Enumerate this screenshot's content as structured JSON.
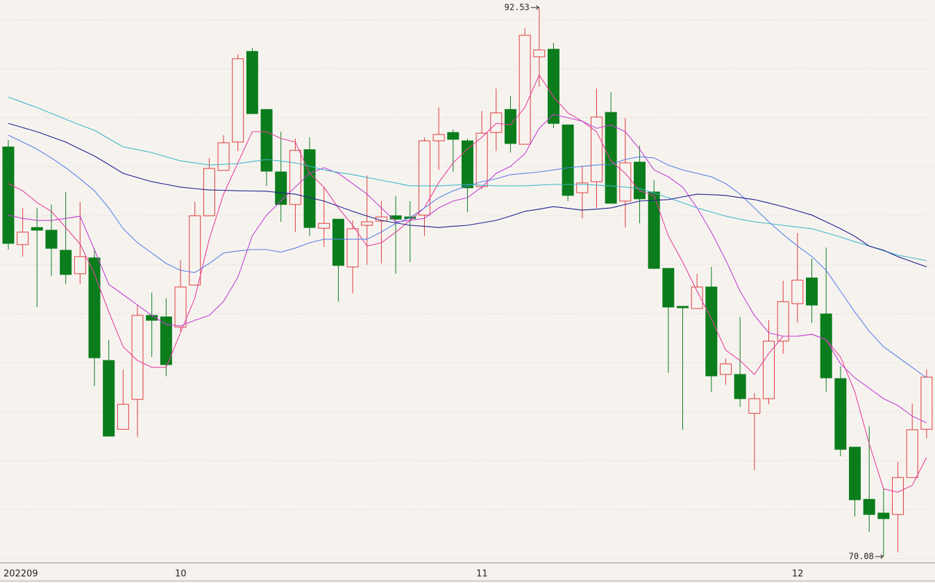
{
  "chart_data": {
    "type": "candlestick",
    "categories": [
      "202209",
      null,
      null,
      null,
      null,
      null,
      null,
      null,
      null,
      null,
      null,
      null,
      "10",
      null,
      null,
      null,
      null,
      null,
      null,
      null,
      null,
      null,
      null,
      null,
      null,
      null,
      null,
      null,
      null,
      null,
      null,
      null,
      null,
      "11",
      null,
      null,
      null,
      null,
      null,
      null,
      null,
      null,
      null,
      null,
      null,
      null,
      null,
      null,
      null,
      null,
      null,
      null,
      null,
      null,
      null,
      "12",
      null,
      null,
      null,
      null,
      null,
      null,
      null,
      null,
      null
    ],
    "open": [
      86.81,
      82.82,
      83.52,
      83.41,
      82.59,
      81.63,
      82.28,
      78.09,
      75.28,
      76.5,
      79.93,
      79.87,
      79.45,
      81.17,
      84.0,
      85.85,
      87.01,
      90.71,
      88.34,
      85.79,
      84.46,
      86.7,
      83.49,
      83.86,
      81.91,
      83.61,
      83.78,
      84.0,
      83.95,
      84.03,
      87.06,
      87.4,
      87.06,
      85.19,
      87.4,
      88.34,
      86.92,
      90.49,
      90.8,
      87.71,
      84.94,
      85.39,
      88.22,
      84.6,
      86.19,
      84.97,
      81.85,
      80.3,
      80.21,
      81.09,
      77.52,
      77.52,
      75.93,
      76.53,
      78.88,
      80.41,
      81.46,
      79.99,
      77.35,
      74.55,
      72.42,
      71.86,
      71.8,
      73.31,
      75.28
    ],
    "high": [
      87.09,
      84.32,
      84.32,
      84.46,
      84.97,
      84.57,
      82.67,
      78.94,
      77.72,
      80.35,
      80.86,
      80.63,
      82.19,
      84.57,
      86.36,
      87.29,
      90.6,
      90.86,
      88.34,
      87.43,
      87.15,
      87.2,
      85.17,
      83.86,
      83.81,
      85.65,
      84.6,
      84.8,
      84.6,
      87.2,
      88.42,
      87.52,
      87.15,
      88.28,
      89.19,
      88.9,
      91.65,
      92.53,
      91.06,
      87.71,
      86.02,
      89.19,
      89.04,
      87.99,
      86.86,
      85.45,
      81.85,
      80.3,
      81.63,
      81.91,
      78.17,
      79.87,
      76.76,
      79.73,
      81.34,
      83.3,
      82.25,
      82.7,
      77.86,
      74.55,
      75.4,
      72.85,
      73.95,
      76.33,
      77.72
    ],
    "low": [
      82.62,
      82.33,
      80.27,
      81.54,
      81.2,
      81.2,
      77.04,
      75.0,
      75.28,
      74.97,
      78.23,
      77.44,
      79.28,
      81.17,
      84.0,
      85.85,
      86.64,
      88.17,
      85.22,
      83.75,
      83.33,
      83.18,
      82.73,
      80.49,
      80.83,
      82.0,
      82.05,
      81.63,
      82.11,
      83.18,
      85.87,
      85.79,
      84.15,
      85.08,
      86.64,
      86.58,
      86.92,
      89.27,
      87.57,
      84.6,
      83.89,
      84.32,
      84.51,
      83.52,
      83.69,
      81.82,
      77.58,
      75.26,
      80.21,
      76.81,
      77.1,
      76.19,
      73.61,
      76.3,
      78.37,
      79.64,
      79.62,
      76.81,
      74.18,
      71.72,
      71.09,
      70.08,
      70.25,
      73.31,
      74.91
    ],
    "close": [
      82.87,
      83.33,
      83.41,
      82.67,
      81.6,
      82.33,
      78.2,
      75.0,
      76.3,
      79.93,
      79.73,
      77.92,
      81.09,
      84.0,
      85.93,
      86.98,
      90.41,
      88.17,
      85.82,
      84.46,
      86.67,
      83.52,
      83.69,
      81.97,
      83.47,
      83.75,
      83.95,
      83.86,
      83.89,
      87.06,
      87.32,
      87.12,
      85.14,
      87.37,
      88.2,
      86.95,
      91.37,
      90.77,
      87.77,
      84.83,
      85.34,
      88.03,
      84.51,
      86.16,
      84.69,
      81.85,
      80.27,
      80.24,
      81.09,
      77.46,
      77.95,
      76.53,
      76.53,
      78.88,
      80.49,
      81.37,
      80.35,
      77.38,
      74.46,
      72.4,
      71.8,
      71.63,
      73.31,
      75.26,
      77.41
    ],
    "up_color": "#e03a3a",
    "down_color": "#0b7d1c",
    "lines": [
      {
        "color": "#e8409a",
        "values": [
          85.31,
          85.02,
          84.54,
          84.18,
          83.52,
          82.84,
          81.63,
          80.07,
          78.65,
          78.09,
          77.81,
          77.81,
          79.22,
          80.64,
          83.04,
          84.88,
          86.16,
          87.43,
          87.43,
          87.15,
          87.01,
          85.73,
          85.17,
          84.32,
          83.61,
          82.76,
          82.9,
          83.33,
          83.81,
          84.32,
          85.36,
          86.16,
          86.72,
          87.2,
          87.77,
          87.71,
          88.42,
          89.75,
          88.85,
          88.2,
          87.86,
          87.43,
          86.24,
          85.73,
          85.02,
          84.83,
          83.18,
          82.11,
          80.92,
          79.79,
          78.51,
          78.09,
          77.52,
          78.37,
          79.08,
          79.08,
          79.16,
          78.94,
          78.23,
          76.81,
          74.69,
          72.85,
          72.71,
          72.99,
          74.13
        ]
      },
      {
        "color": "#c23fd6",
        "values": [
          84.03,
          83.89,
          83.81,
          83.81,
          83.89,
          83.98,
          82.62,
          81.2,
          80.78,
          80.35,
          79.93,
          79.56,
          79.5,
          79.73,
          79.93,
          80.5,
          81.49,
          83.18,
          84.03,
          84.6,
          85.17,
          85.73,
          85.96,
          85.73,
          85.31,
          84.88,
          84.32,
          83.75,
          83.81,
          83.89,
          84.32,
          84.6,
          84.74,
          85.17,
          85.73,
          86.02,
          86.53,
          87.57,
          88.14,
          88.0,
          87.86,
          87.57,
          87.71,
          87.43,
          86.72,
          85.87,
          85.59,
          85.17,
          84.32,
          83.33,
          82.19,
          80.92,
          79.93,
          79.22,
          79.08,
          79.08,
          79.16,
          78.94,
          77.95,
          77.38,
          76.96,
          76.53,
          76.25,
          75.82,
          75.54
        ]
      },
      {
        "color": "#5a7fe6",
        "values": [
          87.29,
          87.01,
          86.72,
          86.36,
          85.96,
          85.51,
          85.02,
          84.32,
          83.47,
          82.9,
          82.48,
          82.05,
          81.77,
          81.68,
          82.05,
          82.48,
          82.56,
          82.62,
          82.62,
          82.51,
          82.68,
          82.9,
          83.04,
          83.04,
          83.04,
          83.04,
          83.33,
          83.69,
          83.92,
          84.32,
          84.74,
          85.02,
          85.22,
          85.39,
          85.51,
          85.68,
          85.73,
          85.79,
          85.87,
          85.96,
          86.02,
          86.07,
          86.1,
          86.3,
          86.41,
          86.36,
          86.07,
          85.87,
          85.73,
          85.59,
          85.31,
          84.88,
          84.32,
          83.75,
          83.24,
          82.76,
          82.34,
          81.77,
          80.92,
          80.07,
          79.28,
          78.65,
          78.23,
          77.81,
          77.38
        ]
      },
      {
        "color": "#3fb7c9",
        "values": [
          88.85,
          88.63,
          88.42,
          88.18,
          87.94,
          87.71,
          87.49,
          87.15,
          86.81,
          86.7,
          86.58,
          86.41,
          86.24,
          86.16,
          86.07,
          86.1,
          86.13,
          86.21,
          86.3,
          86.23,
          86.16,
          86.02,
          85.87,
          85.77,
          85.68,
          85.56,
          85.45,
          85.34,
          85.22,
          85.22,
          85.22,
          85.25,
          85.28,
          85.25,
          85.22,
          85.22,
          85.22,
          85.25,
          85.28,
          85.28,
          85.28,
          85.25,
          85.22,
          85.17,
          85.11,
          84.93,
          84.74,
          84.53,
          84.32,
          84.15,
          83.98,
          83.86,
          83.75,
          83.68,
          83.61,
          83.54,
          83.47,
          83.3,
          83.13,
          82.94,
          82.76,
          82.57,
          82.39,
          82.28,
          82.17
        ]
      },
      {
        "color": "#1c1c8e",
        "values": [
          87.77,
          87.6,
          87.43,
          87.22,
          87.01,
          86.72,
          86.44,
          86.09,
          85.73,
          85.56,
          85.39,
          85.28,
          85.17,
          85.11,
          85.05,
          85.04,
          85.02,
          85.01,
          85.0,
          84.94,
          84.88,
          84.74,
          84.6,
          84.39,
          84.18,
          83.99,
          83.81,
          83.71,
          83.61,
          83.57,
          83.52,
          83.57,
          83.61,
          83.71,
          83.81,
          83.99,
          84.18,
          84.27,
          84.37,
          84.3,
          84.23,
          84.27,
          84.32,
          84.46,
          84.6,
          84.63,
          84.66,
          84.77,
          84.88,
          84.86,
          84.83,
          84.74,
          84.66,
          84.52,
          84.37,
          84.2,
          84.03,
          83.75,
          83.47,
          83.16,
          82.76,
          82.59,
          82.33,
          82.12,
          81.91
        ]
      }
    ],
    "ylim": [
      69.88,
      92.81
    ],
    "yticks": [
      70,
      72,
      74,
      76,
      78,
      80,
      82,
      84,
      86,
      88,
      90,
      92
    ],
    "ytick_labels": false,
    "grid": true,
    "high_mark_index": 37,
    "low_mark_index": 61
  }
}
